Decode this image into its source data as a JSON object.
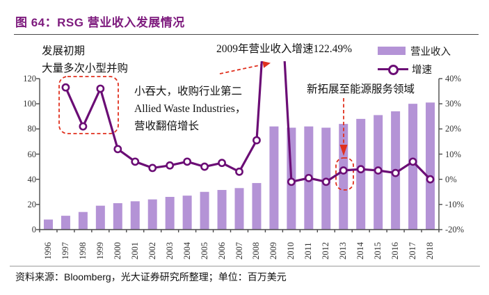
{
  "colors": {
    "bar": "#b493d6",
    "line": "#6b0d75",
    "accent_red": "#e0301e",
    "title": "#7d1a7d",
    "axis": "#4a4a4a",
    "text": "#1a1a1a"
  },
  "header": {
    "title": "图 64：RSG 营业收入发展情况"
  },
  "legend": {
    "bars": "营业收入",
    "line": "增速"
  },
  "annotations": {
    "early_line1": "发展初期",
    "early_line2": "大量多次小型并购",
    "spike": "2009年营业收入增速122.49%",
    "acq_line1": "小吞大，收购行业第二",
    "acq_line2": "Allied Waste Industries，",
    "acq_line3": "营收翻倍增长",
    "energy": "新拓展至能源服务领域"
  },
  "source": {
    "label": "资料来源：",
    "vendor": "Bloomberg",
    "rest": "，光大证券研究所整理；单位：百万美元"
  },
  "chart_data": {
    "type": "bar",
    "subtype": "combo-bar-line-dual-axis",
    "title": "RSG 营业收入发展情况",
    "unit": "百万美元",
    "categories": [
      "1996",
      "1997",
      "1998",
      "1999",
      "2000",
      "2001",
      "2002",
      "2003",
      "2004",
      "2005",
      "2006",
      "2007",
      "2008",
      "2009",
      "2010",
      "2011",
      "2012",
      "2013",
      "2014",
      "2015",
      "2016",
      "2017",
      "2018"
    ],
    "series": [
      {
        "name": "营业收入",
        "type": "bar",
        "axis": "left",
        "values": [
          8,
          11,
          14,
          19,
          21,
          22.5,
          24,
          26,
          27,
          30,
          31.5,
          33,
          37,
          82,
          81,
          82,
          81,
          84,
          88,
          91,
          94,
          100,
          101
        ]
      },
      {
        "name": "增速",
        "type": "line",
        "axis": "right",
        "unit": "%",
        "values": [
          null,
          36.5,
          21,
          36,
          12,
          7,
          4.5,
          5.5,
          7,
          5,
          6.5,
          3,
          15.5,
          122.49,
          -1,
          0.5,
          -1,
          3.5,
          4,
          3.5,
          2.5,
          7,
          0
        ]
      }
    ],
    "left_axis": {
      "ticks": [
        0,
        20,
        40,
        60,
        80,
        100,
        120
      ],
      "range": [
        0,
        120
      ]
    },
    "right_axis": {
      "ticks": [
        "-20%",
        "-10%",
        "0%",
        "10%",
        "20%",
        "30%",
        "40%"
      ],
      "range": [
        -20,
        40
      ]
    },
    "grid": false,
    "legend_position": "top-right"
  }
}
